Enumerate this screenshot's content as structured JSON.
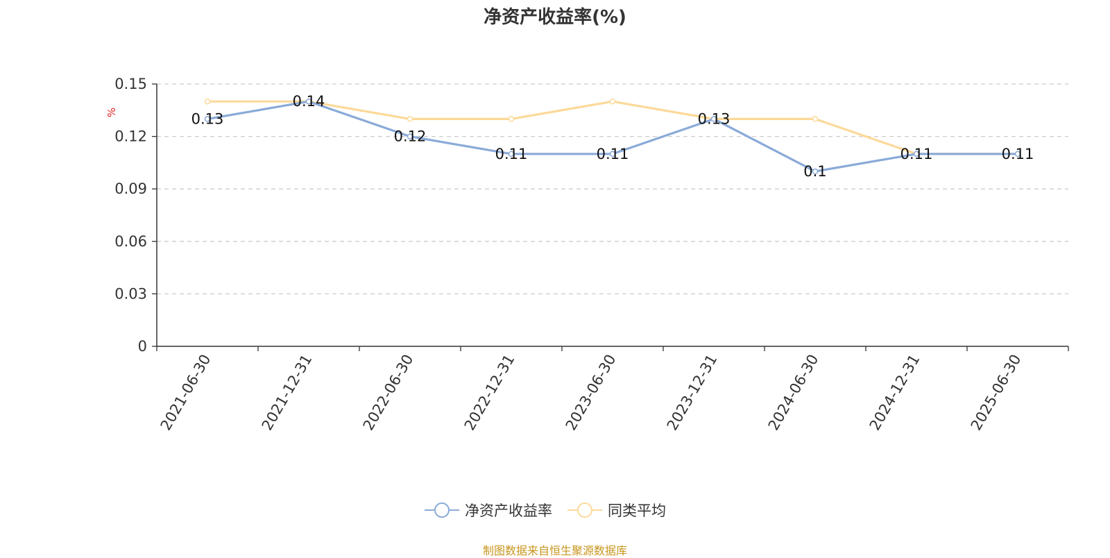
{
  "source_note": "制图数据来自恒生聚源数据库",
  "legend": [
    {
      "label": "净资产收益率",
      "color": "#8aaad8"
    },
    {
      "label": "同类平均",
      "color": "#fcd999"
    }
  ],
  "chart_data": {
    "type": "line",
    "title": "净资产收益率(%)",
    "xlabel": "",
    "ylabel": "%",
    "ylim": [
      0,
      0.15
    ],
    "yticks": [
      "0",
      "0.03",
      "0.06",
      "0.09",
      "0.12",
      "0.15"
    ],
    "categories": [
      "2021-06-30",
      "2021-12-31",
      "2022-06-30",
      "2022-12-31",
      "2023-06-30",
      "2023-12-31",
      "2024-06-30",
      "2024-12-31",
      "2025-06-30"
    ],
    "grid": true,
    "legend_position": "bottom",
    "series": [
      {
        "name": "净资产收益率",
        "color": "#8aaad8",
        "values": [
          0.13,
          0.14,
          0.12,
          0.11,
          0.11,
          0.13,
          0.1,
          0.11,
          0.11
        ],
        "labels": [
          "0.13",
          "0.14",
          "0.12",
          "0.11",
          "0.11",
          "0.13",
          "0.1",
          "0.11",
          "0.11"
        ]
      },
      {
        "name": "同类平均",
        "color": "#fcd999",
        "values": [
          0.14,
          0.14,
          0.13,
          0.13,
          0.14,
          0.13,
          0.13,
          0.11,
          0.11
        ]
      }
    ]
  }
}
